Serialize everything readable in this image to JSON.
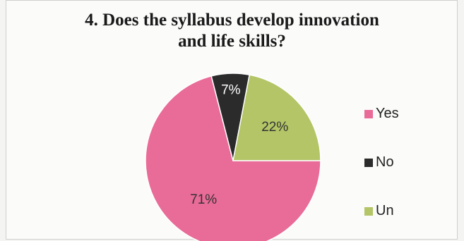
{
  "title_lines": [
    "4. Does the syllabus develop innovation",
    "and life skills?"
  ],
  "chart_data": {
    "type": "pie",
    "title": "4. Does the syllabus develop innovation and life skills?",
    "slices": [
      {
        "label": "Yes",
        "value": 71,
        "value_label": "71%",
        "color": "#e96b97"
      },
      {
        "label": "No",
        "value": 7,
        "value_label": "7%",
        "color": "#2b2b2b"
      },
      {
        "label": "Un",
        "value": 22,
        "value_label": "22%",
        "color": "#b3c566"
      }
    ],
    "legend": {
      "position": "right",
      "entries": [
        "Yes",
        "No",
        "Un"
      ]
    }
  }
}
